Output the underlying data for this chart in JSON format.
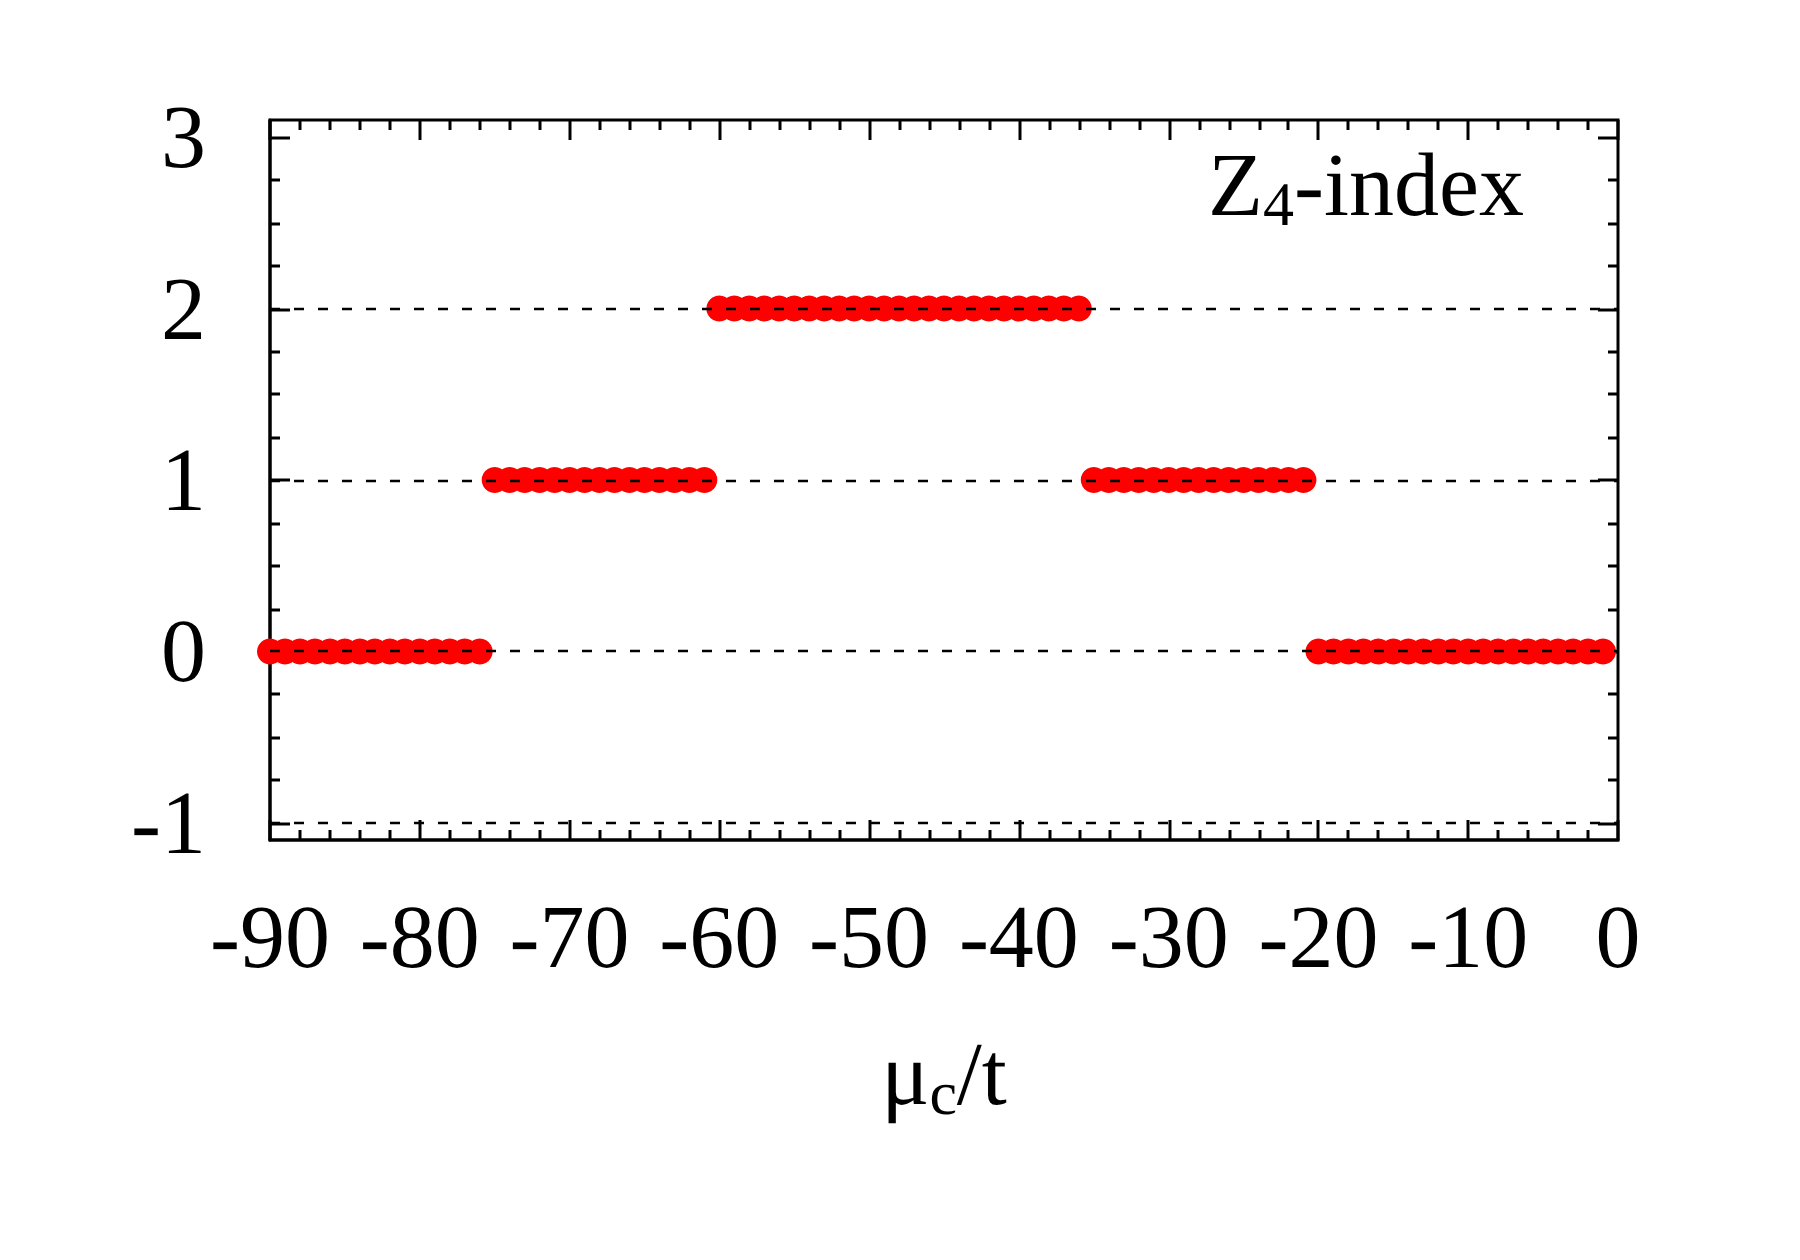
{
  "chart_data": {
    "type": "scatter",
    "xlabel": "μ$_{c}$/t",
    "annotations": [
      "Z$_{4}$-index"
    ],
    "x": [
      -90,
      -89,
      -88,
      -87,
      -86,
      -85,
      -84,
      -83,
      -82,
      -81,
      -80,
      -79,
      -78,
      -77,
      -76,
      -75,
      -74,
      -73,
      -72,
      -71,
      -70,
      -69,
      -68,
      -67,
      -66,
      -65,
      -64,
      -63,
      -62,
      -61,
      -60,
      -59,
      -58,
      -57,
      -56,
      -55,
      -54,
      -53,
      -52,
      -51,
      -50,
      -49,
      -48,
      -47,
      -46,
      -45,
      -44,
      -43,
      -42,
      -41,
      -40,
      -39,
      -38,
      -37,
      -36,
      -35,
      -34,
      -33,
      -32,
      -31,
      -30,
      -29,
      -28,
      -27,
      -26,
      -25,
      -24,
      -23,
      -22,
      -21,
      -20,
      -19,
      -18,
      -17,
      -16,
      -15,
      -14,
      -13,
      -12,
      -11,
      -10,
      -9,
      -8,
      -7,
      -6,
      -5,
      -4,
      -3,
      -2,
      -1
    ],
    "values": [
      0,
      0,
      0,
      0,
      0,
      0,
      0,
      0,
      0,
      0,
      0,
      0,
      0,
      0,
      0,
      1,
      1,
      1,
      1,
      1,
      1,
      1,
      1,
      1,
      1,
      1,
      1,
      1,
      1,
      1,
      2,
      2,
      2,
      2,
      2,
      2,
      2,
      2,
      2,
      2,
      2,
      2,
      2,
      2,
      2,
      2,
      2,
      2,
      2,
      2,
      2,
      2,
      2,
      2,
      2,
      1,
      1,
      1,
      1,
      1,
      1,
      1,
      1,
      1,
      1,
      1,
      1,
      1,
      1,
      1,
      0,
      0,
      0,
      0,
      0,
      0,
      0,
      0,
      0,
      0,
      0,
      0,
      0,
      0,
      0,
      0,
      0,
      0,
      0,
      0
    ],
    "color": "#ff0000",
    "marker": "circle",
    "xlim": [
      -90,
      0
    ],
    "xticks": [
      -90,
      -80,
      -70,
      -60,
      -50,
      -40,
      -30,
      -20,
      -10,
      0
    ],
    "ylim": [
      -1.1,
      3.1
    ],
    "yticks": [
      -1,
      0,
      1,
      2,
      3
    ],
    "ref_lines": [
      {
        "axis": "y",
        "value": -1,
        "color": "#000000",
        "line_style": "dashed"
      },
      {
        "axis": "y",
        "value": 0,
        "color": "#000000",
        "line_style": "dashed"
      },
      {
        "axis": "y",
        "value": 1,
        "color": "#000000",
        "line_style": "dashed"
      },
      {
        "axis": "y",
        "value": 2,
        "color": "#000000",
        "line_style": "dashed"
      }
    ],
    "grid": false
  }
}
